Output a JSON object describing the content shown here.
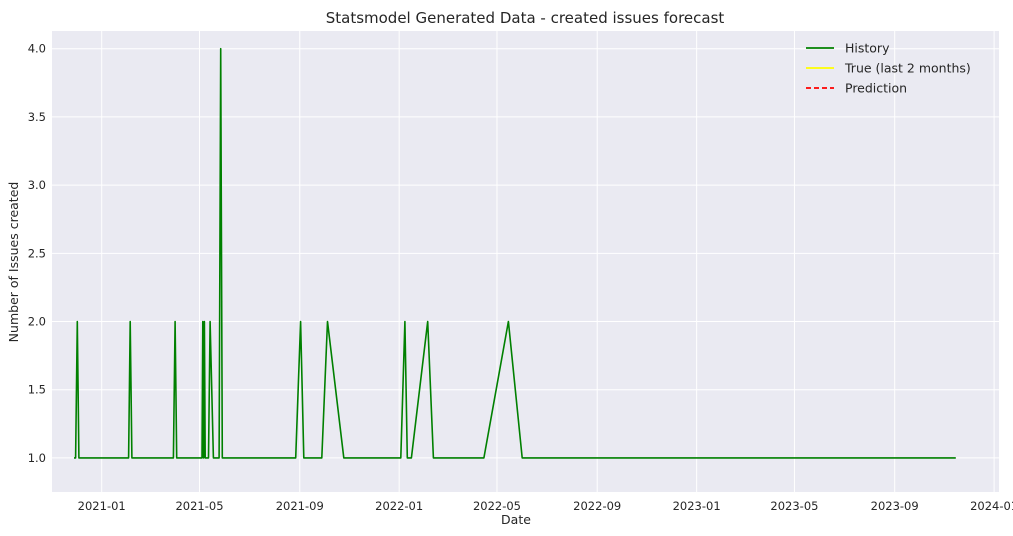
{
  "chart_data": {
    "type": "line",
    "title": "Statsmodel Generated Data - created issues forecast",
    "xlabel": "Date",
    "ylabel": "Number of Issues created",
    "x_ticks": [
      "2021-01",
      "2021-05",
      "2021-09",
      "2022-01",
      "2022-05",
      "2022-09",
      "2023-01",
      "2023-05",
      "2023-09",
      "2024-01"
    ],
    "y_ticks": [
      "1.0",
      "1.5",
      "2.0",
      "2.5",
      "3.0",
      "3.5",
      "4.0"
    ],
    "ylim": [
      0.75,
      4.13
    ],
    "xlim": [
      "2020-11-01",
      "2024-01-07"
    ],
    "grid": true,
    "legend_position": "top-right",
    "series": [
      {
        "name": "History",
        "color": "#008000",
        "style": "solid",
        "points": [
          [
            "2020-11-28",
            1
          ],
          [
            "2020-11-30",
            1
          ],
          [
            "2020-12-02",
            2
          ],
          [
            "2020-12-04",
            1
          ],
          [
            "2021-02-03",
            1
          ],
          [
            "2021-02-05",
            2
          ],
          [
            "2021-02-07",
            1
          ],
          [
            "2021-03-30",
            1
          ],
          [
            "2021-04-01",
            2
          ],
          [
            "2021-04-03",
            1
          ],
          [
            "2021-05-04",
            1
          ],
          [
            "2021-05-05",
            2
          ],
          [
            "2021-05-06",
            1
          ],
          [
            "2021-05-07",
            2
          ],
          [
            "2021-05-08",
            1
          ],
          [
            "2021-05-12",
            1
          ],
          [
            "2021-05-14",
            2
          ],
          [
            "2021-05-18",
            1
          ],
          [
            "2021-05-25",
            1
          ],
          [
            "2021-05-27",
            4
          ],
          [
            "2021-05-29",
            1
          ],
          [
            "2021-08-27",
            1
          ],
          [
            "2021-09-02",
            2
          ],
          [
            "2021-09-06",
            1
          ],
          [
            "2021-09-28",
            1
          ],
          [
            "2021-10-05",
            2
          ],
          [
            "2021-10-25",
            1
          ],
          [
            "2022-01-03",
            1
          ],
          [
            "2022-01-08",
            2
          ],
          [
            "2022-01-11",
            1
          ],
          [
            "2022-01-16",
            1
          ],
          [
            "2022-02-05",
            2
          ],
          [
            "2022-02-12",
            1
          ],
          [
            "2022-04-15",
            1
          ],
          [
            "2022-05-15",
            2
          ],
          [
            "2022-06-01",
            1
          ],
          [
            "2023-11-15",
            1
          ]
        ]
      },
      {
        "name": "True (last 2 months)",
        "color": "#ffff00",
        "style": "solid",
        "points": []
      },
      {
        "name": "Prediction",
        "color": "#ff0000",
        "style": "dashed",
        "points": []
      }
    ]
  }
}
